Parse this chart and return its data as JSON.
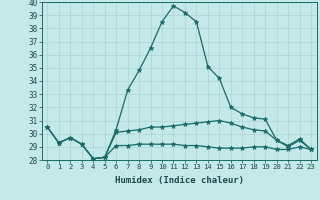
{
  "xlabel": "Humidex (Indice chaleur)",
  "background_color": "#c5e8e8",
  "grid_color": "#aad4d4",
  "line_color": "#1a6b6b",
  "x_values": [
    0,
    1,
    2,
    3,
    4,
    5,
    6,
    7,
    8,
    9,
    10,
    11,
    12,
    13,
    14,
    15,
    16,
    17,
    18,
    19,
    20,
    21,
    22,
    23
  ],
  "series1": [
    30.5,
    29.3,
    29.7,
    29.2,
    28.1,
    28.2,
    30.3,
    33.3,
    34.8,
    36.5,
    38.5,
    39.7,
    39.2,
    38.5,
    35.1,
    34.2,
    32.0,
    31.5,
    31.2,
    31.1,
    29.5,
    29.0,
    29.5,
    28.8
  ],
  "series2": [
    30.5,
    29.3,
    29.7,
    29.2,
    28.1,
    28.2,
    30.1,
    30.2,
    30.3,
    30.5,
    30.5,
    30.6,
    30.7,
    30.8,
    30.9,
    31.0,
    30.8,
    30.5,
    30.3,
    30.2,
    29.5,
    29.1,
    29.6,
    28.8
  ],
  "series3": [
    30.5,
    29.3,
    29.7,
    29.2,
    28.1,
    28.2,
    29.1,
    29.1,
    29.2,
    29.2,
    29.2,
    29.2,
    29.1,
    29.1,
    29.0,
    28.9,
    28.9,
    28.9,
    29.0,
    29.0,
    28.8,
    28.8,
    29.0,
    28.8
  ],
  "ylim": [
    28,
    40
  ],
  "xlim": [
    -0.5,
    23.5
  ],
  "yticks": [
    28,
    29,
    30,
    31,
    32,
    33,
    34,
    35,
    36,
    37,
    38,
    39,
    40
  ],
  "xticks": [
    0,
    1,
    2,
    3,
    4,
    5,
    6,
    7,
    8,
    9,
    10,
    11,
    12,
    13,
    14,
    15,
    16,
    17,
    18,
    19,
    20,
    21,
    22,
    23
  ]
}
